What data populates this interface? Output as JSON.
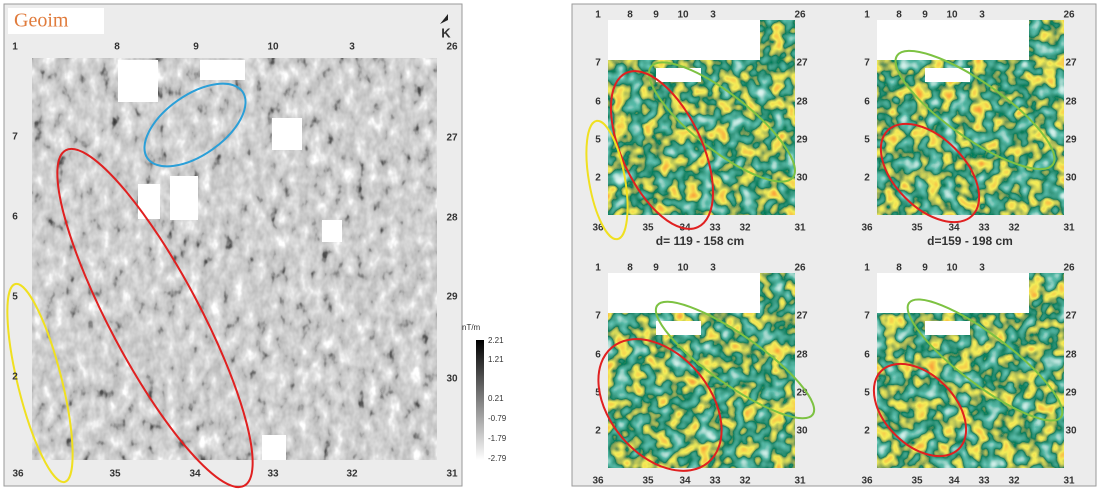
{
  "left_map": {
    "logo": "Geoim",
    "north": "K",
    "top_labels": [
      "1",
      "8",
      "9",
      "10",
      "3",
      "26"
    ],
    "left_labels": [
      "7",
      "6",
      "5",
      "2"
    ],
    "bottom_labels": [
      "36",
      "35",
      "34",
      "33",
      "32",
      "31"
    ],
    "right_labels": [
      "27",
      "28",
      "29",
      "30"
    ],
    "colorbar": {
      "unit": "nT/m",
      "labels": [
        "2.21",
        "1.21",
        "0.21",
        "-0.79",
        "-1.79",
        "-2.79"
      ]
    }
  },
  "panel_labels": {
    "top": [
      "1",
      "8",
      "9",
      "10",
      "3",
      "26"
    ],
    "left": [
      "7",
      "6",
      "5",
      "2"
    ],
    "bottom": [
      "36",
      "35",
      "34",
      "33",
      "32",
      "31"
    ],
    "right": [
      "27",
      "28",
      "29",
      "30"
    ]
  },
  "captions": [
    "d= 119 - 158 cm",
    "d=159 - 198 cm"
  ]
}
